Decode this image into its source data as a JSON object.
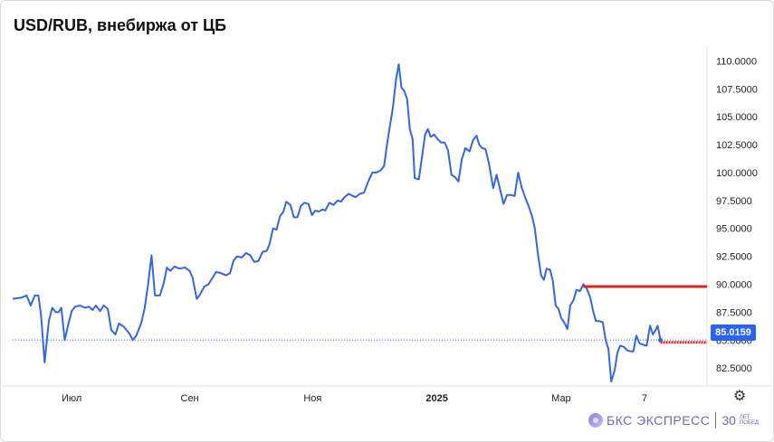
{
  "title": "USD/RUB, внебиржа от ЦБ",
  "brand": {
    "name": "БКС ЭКСПРЕСС",
    "years": "30",
    "tag1": "ЛЕТ",
    "tag2": "ПОБЕД"
  },
  "last_value_label": "85.0159",
  "colors": {
    "line": "#3366e6",
    "accent_line": "#e0231b",
    "badge": "#2962ff"
  },
  "chart_data": {
    "type": "line",
    "title": "USD/RUB, внебиржа от ЦБ",
    "xlabel": "",
    "ylabel": "",
    "ylim": [
      80.9,
      111.0
    ],
    "y_ticks": [
      110.0,
      107.5,
      105.0,
      102.5,
      100.0,
      97.5,
      95.0,
      92.5,
      90.0,
      87.5,
      85.0,
      82.5
    ],
    "y_tick_labels": [
      "110.0000",
      "107.5000",
      "105.0000",
      "102.5000",
      "100.0000",
      "97.5000",
      "95.0000",
      "92.5000",
      "90.0000",
      "87.5000",
      "85.0000",
      "82.5000"
    ],
    "x_ticks": [
      {
        "label": "Июл",
        "t": 0.085,
        "bold": false
      },
      {
        "label": "Сен",
        "t": 0.255,
        "bold": false
      },
      {
        "label": "Ноя",
        "t": 0.432,
        "bold": false
      },
      {
        "label": "2025",
        "t": 0.611,
        "bold": true
      },
      {
        "label": "Мар",
        "t": 0.79,
        "bold": false
      },
      {
        "label": "7",
        "t": 0.91,
        "bold": false
      }
    ],
    "x_domain": [
      0,
      1
    ],
    "series": [
      {
        "values": [
          [
            0.0,
            88.7
          ],
          [
            0.012,
            88.8
          ],
          [
            0.02,
            89.0
          ],
          [
            0.026,
            88.1
          ],
          [
            0.032,
            89.0
          ],
          [
            0.037,
            89.0
          ],
          [
            0.041,
            87.2
          ],
          [
            0.046,
            83.0
          ],
          [
            0.052,
            86.7
          ],
          [
            0.057,
            87.9
          ],
          [
            0.062,
            87.5
          ],
          [
            0.066,
            87.5
          ],
          [
            0.07,
            87.9
          ],
          [
            0.075,
            85.0
          ],
          [
            0.08,
            86.4
          ],
          [
            0.085,
            87.6
          ],
          [
            0.09,
            88.0
          ],
          [
            0.097,
            88.1
          ],
          [
            0.104,
            87.9
          ],
          [
            0.11,
            88.0
          ],
          [
            0.115,
            87.7
          ],
          [
            0.12,
            88.1
          ],
          [
            0.126,
            87.6
          ],
          [
            0.131,
            88.1
          ],
          [
            0.137,
            87.8
          ],
          [
            0.142,
            85.9
          ],
          [
            0.148,
            85.5
          ],
          [
            0.153,
            86.5
          ],
          [
            0.16,
            86.2
          ],
          [
            0.168,
            85.6
          ],
          [
            0.173,
            85.0
          ],
          [
            0.178,
            85.4
          ],
          [
            0.185,
            86.5
          ],
          [
            0.19,
            87.8
          ],
          [
            0.195,
            90.0
          ],
          [
            0.2,
            92.6
          ],
          [
            0.205,
            89.0
          ],
          [
            0.212,
            89.0
          ],
          [
            0.218,
            90.2
          ],
          [
            0.222,
            91.5
          ],
          [
            0.227,
            91.2
          ],
          [
            0.233,
            91.6
          ],
          [
            0.24,
            91.4
          ],
          [
            0.248,
            91.5
          ],
          [
            0.255,
            91.2
          ],
          [
            0.259,
            90.6
          ],
          [
            0.265,
            88.7
          ],
          [
            0.27,
            89.1
          ],
          [
            0.276,
            89.8
          ],
          [
            0.282,
            90.0
          ],
          [
            0.288,
            90.6
          ],
          [
            0.293,
            91.1
          ],
          [
            0.3,
            91.0
          ],
          [
            0.307,
            90.8
          ],
          [
            0.313,
            91.0
          ],
          [
            0.318,
            92.1
          ],
          [
            0.323,
            92.5
          ],
          [
            0.33,
            92.4
          ],
          [
            0.336,
            92.8
          ],
          [
            0.342,
            92.6
          ],
          [
            0.348,
            92.0
          ],
          [
            0.354,
            92.1
          ],
          [
            0.36,
            92.9
          ],
          [
            0.366,
            93.0
          ],
          [
            0.37,
            93.6
          ],
          [
            0.375,
            95.0
          ],
          [
            0.38,
            94.9
          ],
          [
            0.385,
            96.1
          ],
          [
            0.39,
            96.5
          ],
          [
            0.394,
            97.4
          ],
          [
            0.4,
            97.1
          ],
          [
            0.405,
            96.0
          ],
          [
            0.41,
            96.0
          ],
          [
            0.415,
            97.0
          ],
          [
            0.42,
            97.3
          ],
          [
            0.426,
            97.2
          ],
          [
            0.431,
            96.2
          ],
          [
            0.436,
            96.6
          ],
          [
            0.441,
            96.5
          ],
          [
            0.446,
            96.7
          ],
          [
            0.45,
            96.6
          ],
          [
            0.456,
            97.3
          ],
          [
            0.462,
            97.1
          ],
          [
            0.468,
            97.5
          ],
          [
            0.473,
            97.4
          ],
          [
            0.478,
            97.8
          ],
          [
            0.484,
            98.1
          ],
          [
            0.49,
            97.9
          ],
          [
            0.494,
            97.8
          ],
          [
            0.5,
            98.1
          ],
          [
            0.506,
            98.2
          ],
          [
            0.512,
            99.2
          ],
          [
            0.518,
            100.0
          ],
          [
            0.524,
            100.0
          ],
          [
            0.53,
            100.2
          ],
          [
            0.535,
            100.6
          ],
          [
            0.54,
            102.9
          ],
          [
            0.545,
            104.8
          ],
          [
            0.548,
            106.0
          ],
          [
            0.552,
            108.3
          ],
          [
            0.556,
            109.7
          ],
          [
            0.56,
            107.6
          ],
          [
            0.564,
            107.3
          ],
          [
            0.568,
            106.6
          ],
          [
            0.572,
            103.9
          ],
          [
            0.576,
            103.0
          ],
          [
            0.579,
            99.5
          ],
          [
            0.585,
            99.4
          ],
          [
            0.59,
            101.6
          ],
          [
            0.594,
            103.4
          ],
          [
            0.598,
            103.9
          ],
          [
            0.602,
            103.2
          ],
          [
            0.607,
            103.4
          ],
          [
            0.612,
            103.0
          ],
          [
            0.617,
            102.7
          ],
          [
            0.622,
            102.7
          ],
          [
            0.627,
            102.0
          ],
          [
            0.632,
            99.8
          ],
          [
            0.637,
            99.6
          ],
          [
            0.642,
            99.2
          ],
          [
            0.647,
            101.2
          ],
          [
            0.652,
            102.2
          ],
          [
            0.658,
            101.9
          ],
          [
            0.663,
            102.9
          ],
          [
            0.668,
            103.3
          ],
          [
            0.672,
            102.5
          ],
          [
            0.676,
            102.2
          ],
          [
            0.681,
            102.1
          ],
          [
            0.686,
            100.8
          ],
          [
            0.692,
            98.6
          ],
          [
            0.697,
            99.8
          ],
          [
            0.702,
            98.5
          ],
          [
            0.707,
            97.2
          ],
          [
            0.712,
            98.0
          ],
          [
            0.718,
            98.0
          ],
          [
            0.723,
            97.9
          ],
          [
            0.728,
            100.0
          ],
          [
            0.733,
            98.7
          ],
          [
            0.738,
            97.8
          ],
          [
            0.743,
            97.0
          ],
          [
            0.748,
            96.1
          ],
          [
            0.752,
            95.0
          ],
          [
            0.756,
            92.9
          ],
          [
            0.761,
            90.8
          ],
          [
            0.765,
            90.4
          ],
          [
            0.769,
            91.4
          ],
          [
            0.774,
            91.3
          ],
          [
            0.778,
            90.3
          ],
          [
            0.782,
            88.1
          ],
          [
            0.786,
            87.8
          ],
          [
            0.79,
            87.0
          ],
          [
            0.795,
            86.5
          ],
          [
            0.799,
            86.0
          ],
          [
            0.803,
            88.1
          ],
          [
            0.808,
            88.6
          ],
          [
            0.812,
            89.5
          ],
          [
            0.817,
            89.4
          ],
          [
            0.822,
            90.0
          ],
          [
            0.827,
            89.6
          ],
          [
            0.832,
            88.8
          ],
          [
            0.836,
            87.6
          ],
          [
            0.84,
            86.7
          ],
          [
            0.845,
            86.7
          ],
          [
            0.85,
            86.6
          ],
          [
            0.854,
            85.0
          ],
          [
            0.858,
            84.2
          ],
          [
            0.862,
            81.3
          ],
          [
            0.867,
            82.3
          ],
          [
            0.871,
            83.9
          ],
          [
            0.875,
            84.5
          ],
          [
            0.88,
            84.4
          ],
          [
            0.885,
            84.1
          ],
          [
            0.89,
            84.0
          ],
          [
            0.894,
            84.0
          ],
          [
            0.898,
            85.4
          ],
          [
            0.903,
            84.7
          ],
          [
            0.908,
            84.6
          ],
          [
            0.913,
            84.5
          ],
          [
            0.918,
            86.3
          ],
          [
            0.922,
            85.5
          ],
          [
            0.926,
            85.9
          ],
          [
            0.929,
            86.3
          ],
          [
            0.933,
            85.0
          ]
        ]
      }
    ],
    "reference_lines": [
      {
        "value": 89.8,
        "from": 0.822,
        "to": 1.0,
        "style": "solid"
      },
      {
        "value": 84.8,
        "from": 0.933,
        "to": 1.0,
        "style": "dashed"
      }
    ],
    "last_value": 85.0159,
    "grid": false,
    "legend": "none"
  }
}
